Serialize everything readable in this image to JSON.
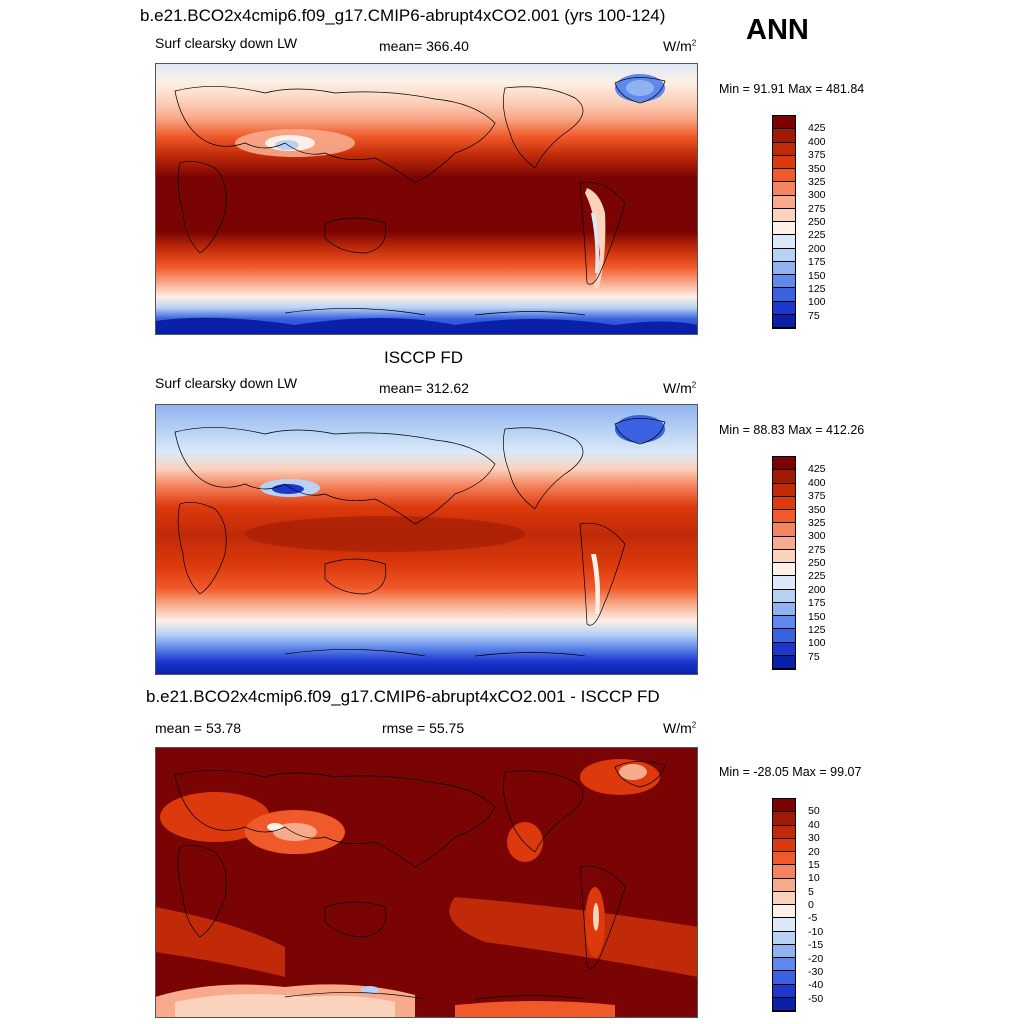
{
  "header": {
    "ann_label": "ANN"
  },
  "panels": [
    {
      "title": "b.e21.BCO2x4cmip6.f09_g17.CMIP6-abrupt4xCO2.001 (yrs 100-124)",
      "variable": "Surf clearsky down LW",
      "stat": "mean= 366.40",
      "units": "W/m",
      "units_sup": "2",
      "minmax": "Min =  91.91 Max = 481.84",
      "colorbar": [
        "425",
        "400",
        "375",
        "350",
        "325",
        "300",
        "275",
        "250",
        "225",
        "200",
        "175",
        "150",
        "125",
        "100",
        "75"
      ]
    },
    {
      "title": "ISCCP FD",
      "variable": "Surf clearsky down LW",
      "stat": "mean= 312.62",
      "units": "W/m",
      "units_sup": "2",
      "minmax": "Min =  88.83 Max = 412.26",
      "colorbar": [
        "425",
        "400",
        "375",
        "350",
        "325",
        "300",
        "275",
        "250",
        "225",
        "200",
        "175",
        "150",
        "125",
        "100",
        "75"
      ]
    },
    {
      "title": "b.e21.BCO2x4cmip6.f09_g17.CMIP6-abrupt4xCO2.001 - ISCCP FD",
      "variable": "mean =  53.78",
      "stat": "rmse =  55.75",
      "units": "W/m",
      "units_sup": "2",
      "minmax": "Min = -28.05 Max =  99.07",
      "colorbar": [
        "50",
        "40",
        "30",
        "20",
        "15",
        "10",
        "5",
        "0",
        "-5",
        "-10",
        "-15",
        "-20",
        "-30",
        "-40",
        "-50"
      ]
    }
  ],
  "palette": [
    "#7a0403",
    "#a01a03",
    "#c02a08",
    "#dc3a0c",
    "#f05a2a",
    "#f58460",
    "#f8ab8c",
    "#fbd2bb",
    "#fdf0e6",
    "#dce8f8",
    "#b8d2f4",
    "#8fb2f0",
    "#5f88ec",
    "#3a62e0",
    "#1c38cc",
    "#0a20a8",
    "#03117e"
  ]
}
